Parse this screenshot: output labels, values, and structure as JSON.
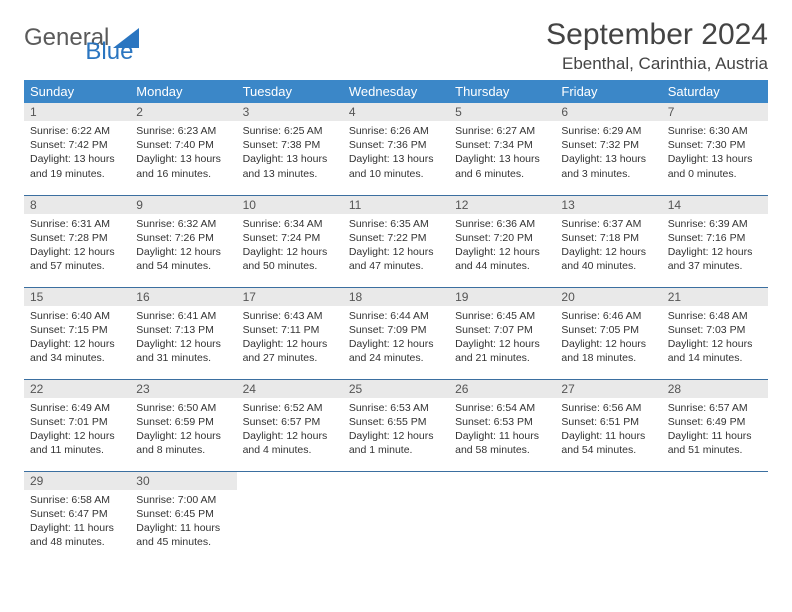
{
  "logo": {
    "text1": "General",
    "text2": "Blue"
  },
  "title": "September 2024",
  "location": "Ebenthal, Carinthia, Austria",
  "colors": {
    "header_bg": "#3b87c8",
    "header_text": "#ffffff",
    "daynum_bg": "#e9e9e9",
    "row_border": "#3b6fa0",
    "logo_blue": "#2a75c0"
  },
  "day_headers": [
    "Sunday",
    "Monday",
    "Tuesday",
    "Wednesday",
    "Thursday",
    "Friday",
    "Saturday"
  ],
  "weeks": [
    [
      {
        "n": "1",
        "sr": "6:22 AM",
        "ss": "7:42 PM",
        "dl": "13 hours and 19 minutes."
      },
      {
        "n": "2",
        "sr": "6:23 AM",
        "ss": "7:40 PM",
        "dl": "13 hours and 16 minutes."
      },
      {
        "n": "3",
        "sr": "6:25 AM",
        "ss": "7:38 PM",
        "dl": "13 hours and 13 minutes."
      },
      {
        "n": "4",
        "sr": "6:26 AM",
        "ss": "7:36 PM",
        "dl": "13 hours and 10 minutes."
      },
      {
        "n": "5",
        "sr": "6:27 AM",
        "ss": "7:34 PM",
        "dl": "13 hours and 6 minutes."
      },
      {
        "n": "6",
        "sr": "6:29 AM",
        "ss": "7:32 PM",
        "dl": "13 hours and 3 minutes."
      },
      {
        "n": "7",
        "sr": "6:30 AM",
        "ss": "7:30 PM",
        "dl": "13 hours and 0 minutes."
      }
    ],
    [
      {
        "n": "8",
        "sr": "6:31 AM",
        "ss": "7:28 PM",
        "dl": "12 hours and 57 minutes."
      },
      {
        "n": "9",
        "sr": "6:32 AM",
        "ss": "7:26 PM",
        "dl": "12 hours and 54 minutes."
      },
      {
        "n": "10",
        "sr": "6:34 AM",
        "ss": "7:24 PM",
        "dl": "12 hours and 50 minutes."
      },
      {
        "n": "11",
        "sr": "6:35 AM",
        "ss": "7:22 PM",
        "dl": "12 hours and 47 minutes."
      },
      {
        "n": "12",
        "sr": "6:36 AM",
        "ss": "7:20 PM",
        "dl": "12 hours and 44 minutes."
      },
      {
        "n": "13",
        "sr": "6:37 AM",
        "ss": "7:18 PM",
        "dl": "12 hours and 40 minutes."
      },
      {
        "n": "14",
        "sr": "6:39 AM",
        "ss": "7:16 PM",
        "dl": "12 hours and 37 minutes."
      }
    ],
    [
      {
        "n": "15",
        "sr": "6:40 AM",
        "ss": "7:15 PM",
        "dl": "12 hours and 34 minutes."
      },
      {
        "n": "16",
        "sr": "6:41 AM",
        "ss": "7:13 PM",
        "dl": "12 hours and 31 minutes."
      },
      {
        "n": "17",
        "sr": "6:43 AM",
        "ss": "7:11 PM",
        "dl": "12 hours and 27 minutes."
      },
      {
        "n": "18",
        "sr": "6:44 AM",
        "ss": "7:09 PM",
        "dl": "12 hours and 24 minutes."
      },
      {
        "n": "19",
        "sr": "6:45 AM",
        "ss": "7:07 PM",
        "dl": "12 hours and 21 minutes."
      },
      {
        "n": "20",
        "sr": "6:46 AM",
        "ss": "7:05 PM",
        "dl": "12 hours and 18 minutes."
      },
      {
        "n": "21",
        "sr": "6:48 AM",
        "ss": "7:03 PM",
        "dl": "12 hours and 14 minutes."
      }
    ],
    [
      {
        "n": "22",
        "sr": "6:49 AM",
        "ss": "7:01 PM",
        "dl": "12 hours and 11 minutes."
      },
      {
        "n": "23",
        "sr": "6:50 AM",
        "ss": "6:59 PM",
        "dl": "12 hours and 8 minutes."
      },
      {
        "n": "24",
        "sr": "6:52 AM",
        "ss": "6:57 PM",
        "dl": "12 hours and 4 minutes."
      },
      {
        "n": "25",
        "sr": "6:53 AM",
        "ss": "6:55 PM",
        "dl": "12 hours and 1 minute."
      },
      {
        "n": "26",
        "sr": "6:54 AM",
        "ss": "6:53 PM",
        "dl": "11 hours and 58 minutes."
      },
      {
        "n": "27",
        "sr": "6:56 AM",
        "ss": "6:51 PM",
        "dl": "11 hours and 54 minutes."
      },
      {
        "n": "28",
        "sr": "6:57 AM",
        "ss": "6:49 PM",
        "dl": "11 hours and 51 minutes."
      }
    ],
    [
      {
        "n": "29",
        "sr": "6:58 AM",
        "ss": "6:47 PM",
        "dl": "11 hours and 48 minutes."
      },
      {
        "n": "30",
        "sr": "7:00 AM",
        "ss": "6:45 PM",
        "dl": "11 hours and 45 minutes."
      },
      null,
      null,
      null,
      null,
      null
    ]
  ],
  "labels": {
    "sunrise": "Sunrise:",
    "sunset": "Sunset:",
    "daylight": "Daylight:"
  }
}
